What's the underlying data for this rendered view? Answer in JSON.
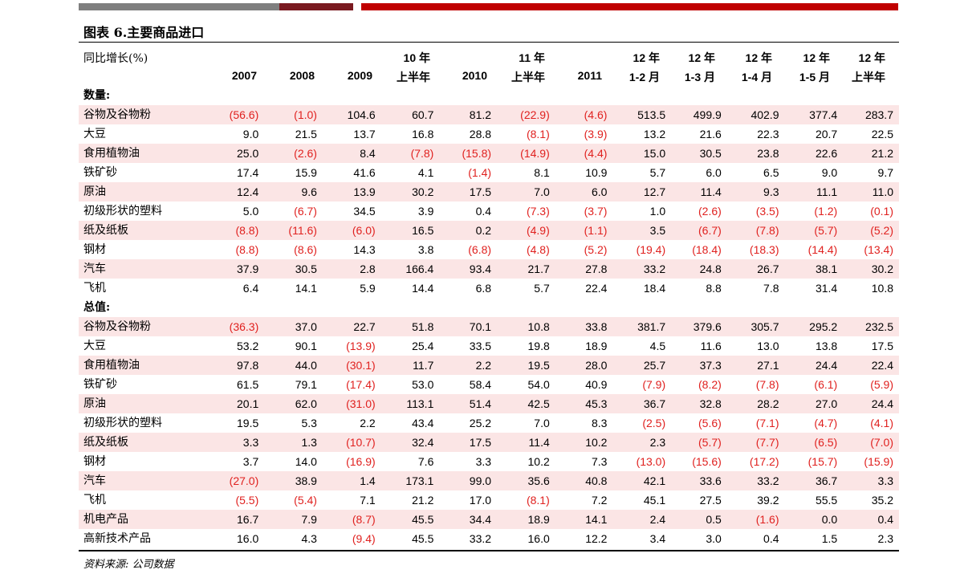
{
  "title": "图表 6.主要商品进口",
  "header_label": "同比增长(%)",
  "columns": [
    {
      "l1": "",
      "l2": "2007"
    },
    {
      "l1": "",
      "l2": "2008"
    },
    {
      "l1": "",
      "l2": "2009"
    },
    {
      "l1": "10 年",
      "l2": "上半年"
    },
    {
      "l1": "",
      "l2": "2010"
    },
    {
      "l1": "11 年",
      "l2": "上半年"
    },
    {
      "l1": "",
      "l2": "2011"
    },
    {
      "l1": "12 年",
      "l2": "1-2 月"
    },
    {
      "l1": "12 年",
      "l2": "1-3 月"
    },
    {
      "l1": "12 年",
      "l2": "1-4 月"
    },
    {
      "l1": "12 年",
      "l2": "1-5 月"
    },
    {
      "l1": "12 年",
      "l2": "上半年"
    }
  ],
  "rows": [
    {
      "label": "数量:",
      "section": true,
      "values": []
    },
    {
      "label": "谷物及谷物粉",
      "values": [
        "(56.6)",
        "(1.0)",
        "104.6",
        "60.7",
        "81.2",
        "(22.9)",
        "(4.6)",
        "513.5",
        "499.9",
        "402.9",
        "377.4",
        "283.7"
      ]
    },
    {
      "label": "大豆",
      "values": [
        "9.0",
        "21.5",
        "13.7",
        "16.8",
        "28.8",
        "(8.1)",
        "(3.9)",
        "13.2",
        "21.6",
        "22.3",
        "20.7",
        "22.5"
      ]
    },
    {
      "label": "食用植物油",
      "values": [
        "25.0",
        "(2.6)",
        "8.4",
        "(7.8)",
        "(15.8)",
        "(14.9)",
        "(4.4)",
        "15.0",
        "30.5",
        "23.8",
        "22.6",
        "21.2"
      ]
    },
    {
      "label": "铁矿砂",
      "values": [
        "17.4",
        "15.9",
        "41.6",
        "4.1",
        "(1.4)",
        "8.1",
        "10.9",
        "5.7",
        "6.0",
        "6.5",
        "9.0",
        "9.7"
      ]
    },
    {
      "label": "原油",
      "values": [
        "12.4",
        "9.6",
        "13.9",
        "30.2",
        "17.5",
        "7.0",
        "6.0",
        "12.7",
        "11.4",
        "9.3",
        "11.1",
        "11.0"
      ]
    },
    {
      "label": "初级形状的塑料",
      "values": [
        "5.0",
        "(6.7)",
        "34.5",
        "3.9",
        "0.4",
        "(7.3)",
        "(3.7)",
        "1.0",
        "(2.6)",
        "(3.5)",
        "(1.2)",
        "(0.1)"
      ]
    },
    {
      "label": "纸及纸板",
      "values": [
        "(8.8)",
        "(11.6)",
        "(6.0)",
        "16.5",
        "0.2",
        "(4.9)",
        "(1.1)",
        "3.5",
        "(6.7)",
        "(7.8)",
        "(5.7)",
        "(5.2)"
      ]
    },
    {
      "label": "钢材",
      "values": [
        "(8.8)",
        "(8.6)",
        "14.3",
        "3.8",
        "(6.8)",
        "(4.8)",
        "(5.2)",
        "(19.4)",
        "(18.4)",
        "(18.3)",
        "(14.4)",
        "(13.4)"
      ]
    },
    {
      "label": "汽车",
      "values": [
        "37.9",
        "30.5",
        "2.8",
        "166.4",
        "93.4",
        "21.7",
        "27.8",
        "33.2",
        "24.8",
        "26.7",
        "38.1",
        "30.2"
      ]
    },
    {
      "label": "飞机",
      "values": [
        "6.4",
        "14.1",
        "5.9",
        "14.4",
        "6.8",
        "5.7",
        "22.4",
        "18.4",
        "8.8",
        "7.8",
        "31.4",
        "10.8"
      ]
    },
    {
      "label": "总值:",
      "section": true,
      "values": []
    },
    {
      "label": "谷物及谷物粉",
      "values": [
        "(36.3)",
        "37.0",
        "22.7",
        "51.8",
        "70.1",
        "10.8",
        "33.8",
        "381.7",
        "379.6",
        "305.7",
        "295.2",
        "232.5"
      ]
    },
    {
      "label": "大豆",
      "values": [
        "53.2",
        "90.1",
        "(13.9)",
        "25.4",
        "33.5",
        "19.8",
        "18.9",
        "4.5",
        "11.6",
        "13.0",
        "13.8",
        "17.5"
      ]
    },
    {
      "label": "食用植物油",
      "values": [
        "97.8",
        "44.0",
        "(30.1)",
        "11.7",
        "2.2",
        "19.5",
        "28.0",
        "25.7",
        "37.3",
        "27.1",
        "24.4",
        "22.4"
      ]
    },
    {
      "label": "铁矿砂",
      "values": [
        "61.5",
        "79.1",
        "(17.4)",
        "53.0",
        "58.4",
        "54.0",
        "40.9",
        "(7.9)",
        "(8.2)",
        "(7.8)",
        "(6.1)",
        "(5.9)"
      ]
    },
    {
      "label": "原油",
      "values": [
        "20.1",
        "62.0",
        "(31.0)",
        "113.1",
        "51.4",
        "42.5",
        "45.3",
        "36.7",
        "32.8",
        "28.2",
        "27.0",
        "24.4"
      ]
    },
    {
      "label": "初级形状的塑料",
      "values": [
        "19.5",
        "5.3",
        "2.2",
        "43.4",
        "25.2",
        "7.0",
        "8.3",
        "(2.5)",
        "(5.6)",
        "(7.1)",
        "(4.7)",
        "(4.1)"
      ]
    },
    {
      "label": "纸及纸板",
      "values": [
        "3.3",
        "1.3",
        "(10.7)",
        "32.4",
        "17.5",
        "11.4",
        "10.2",
        "2.3",
        "(5.7)",
        "(7.7)",
        "(6.5)",
        "(7.0)"
      ]
    },
    {
      "label": "钢材",
      "values": [
        "3.7",
        "14.0",
        "(16.9)",
        "7.6",
        "3.3",
        "10.2",
        "7.3",
        "(13.0)",
        "(15.6)",
        "(17.2)",
        "(15.7)",
        "(15.9)"
      ]
    },
    {
      "label": "汽车",
      "values": [
        "(27.0)",
        "38.9",
        "1.4",
        "173.1",
        "99.0",
        "35.6",
        "40.8",
        "42.1",
        "33.6",
        "33.2",
        "36.7",
        "3.3"
      ]
    },
    {
      "label": "飞机",
      "values": [
        "(5.5)",
        "(5.4)",
        "7.1",
        "21.2",
        "17.0",
        "(8.1)",
        "7.2",
        "45.1",
        "27.5",
        "39.2",
        "55.5",
        "35.2"
      ]
    },
    {
      "label": "机电产品",
      "values": [
        "16.7",
        "7.9",
        "(8.7)",
        "45.5",
        "34.4",
        "18.9",
        "14.1",
        "2.4",
        "0.5",
        "(1.6)",
        "0.0",
        "0.4"
      ]
    },
    {
      "label": "高新技术产品",
      "values": [
        "16.0",
        "4.3",
        "(9.4)",
        "45.5",
        "33.2",
        "16.0",
        "12.2",
        "3.4",
        "3.0",
        "0.4",
        "1.5",
        "2.3"
      ]
    }
  ],
  "source": "资料来源: 公司数据",
  "colors": {
    "negative": "#e0211f",
    "shade": "#fbe5e5",
    "accent_red": "#c00000"
  }
}
